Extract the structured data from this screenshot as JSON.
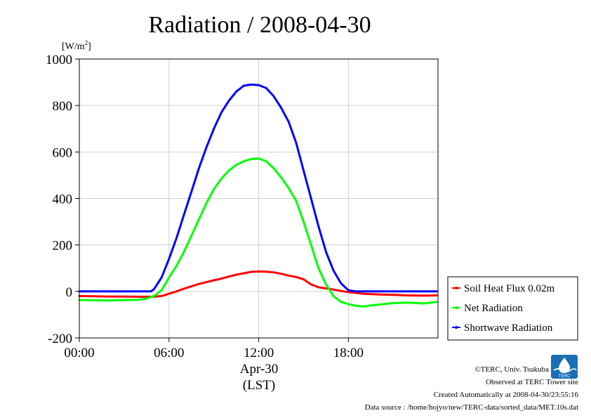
{
  "chart_data": {
    "type": "line",
    "title": "Radiation / 2008-04-30",
    "ylabel_unit_base": "[W/m",
    "ylabel_unit_sup": "2",
    "ylabel_unit_close": "]",
    "xlabel_date": "Apr-30",
    "xlabel_tz": "(LST)",
    "ylim": [
      -200,
      1000
    ],
    "xlim": [
      0,
      23.99
    ],
    "yticks": [
      -200,
      0,
      200,
      400,
      600,
      800,
      1000
    ],
    "xticks": [
      0,
      6,
      12,
      18
    ],
    "xtick_labels": [
      "00:00",
      "06:00",
      "12:00",
      "18:00"
    ],
    "grid": true,
    "legend_position": "right",
    "series": [
      {
        "name": "Soil Heat Flux 0.02m",
        "color": "#ff0000",
        "x": [
          0,
          1,
          2,
          3,
          4,
          5,
          5.5,
          6,
          6.5,
          7,
          7.5,
          8,
          8.5,
          9,
          9.5,
          10,
          10.5,
          11,
          11.5,
          12,
          12.5,
          13,
          13.5,
          14,
          14.5,
          15,
          15.5,
          16,
          16.5,
          17,
          17.5,
          18,
          19,
          20,
          21,
          22,
          23,
          23.9
        ],
        "y": [
          -20,
          -21,
          -22,
          -22,
          -23,
          -23,
          -20,
          -10,
          0,
          12,
          22,
          32,
          40,
          48,
          55,
          64,
          72,
          78,
          84,
          86,
          85,
          82,
          76,
          68,
          62,
          52,
          30,
          18,
          13,
          8,
          2,
          -3,
          -10,
          -13,
          -15,
          -17,
          -18,
          -17
        ]
      },
      {
        "name": "Net Radiation",
        "color": "#00ff00",
        "x": [
          0,
          1,
          2,
          3,
          4,
          4.5,
          5,
          5.5,
          6,
          6.5,
          7,
          7.5,
          8,
          8.5,
          9,
          9.5,
          10,
          10.5,
          11,
          11.5,
          12,
          12.5,
          13,
          13.5,
          14,
          14.5,
          15,
          15.5,
          16,
          16.5,
          17,
          17.5,
          18,
          18.5,
          19,
          19.5,
          20,
          21,
          22,
          23,
          23.9
        ],
        "y": [
          -37,
          -38,
          -39,
          -37,
          -36,
          -30,
          -20,
          5,
          60,
          110,
          170,
          240,
          310,
          380,
          440,
          485,
          520,
          545,
          560,
          570,
          572,
          560,
          530,
          490,
          445,
          390,
          300,
          200,
          100,
          30,
          -20,
          -45,
          -55,
          -62,
          -65,
          -60,
          -57,
          -50,
          -48,
          -52,
          -45
        ]
      },
      {
        "name": "Shortwave Radiation",
        "color": "#0000ff",
        "x": [
          0,
          1,
          2,
          3,
          4,
          4.8,
          5,
          5.5,
          6,
          6.5,
          7,
          7.5,
          8,
          8.5,
          9,
          9.5,
          10,
          10.5,
          11,
          11.5,
          12,
          12.5,
          13,
          13.5,
          14,
          14.5,
          15,
          15.5,
          16,
          16.5,
          17,
          17.5,
          18,
          18.5,
          19,
          20,
          21,
          22,
          23,
          23.9
        ],
        "y": [
          0,
          0,
          0,
          0,
          0,
          0,
          10,
          60,
          140,
          230,
          330,
          430,
          530,
          620,
          700,
          770,
          820,
          860,
          885,
          890,
          888,
          875,
          840,
          790,
          730,
          640,
          520,
          400,
          280,
          170,
          90,
          35,
          5,
          0,
          0,
          0,
          0,
          0,
          0,
          0
        ]
      }
    ]
  },
  "credits": {
    "copyright": "©TERC, Univ. Tsukuba",
    "observed": "Observed at TERC Tower site",
    "created": "Created Automatically at 2008-04-30/23:55:16",
    "source": "Data source : /home/hojyo/new/TERC-data/sorted_data/MET.10s.dat"
  },
  "logo": {
    "text": "TERC",
    "color": "#1a6fb5"
  }
}
